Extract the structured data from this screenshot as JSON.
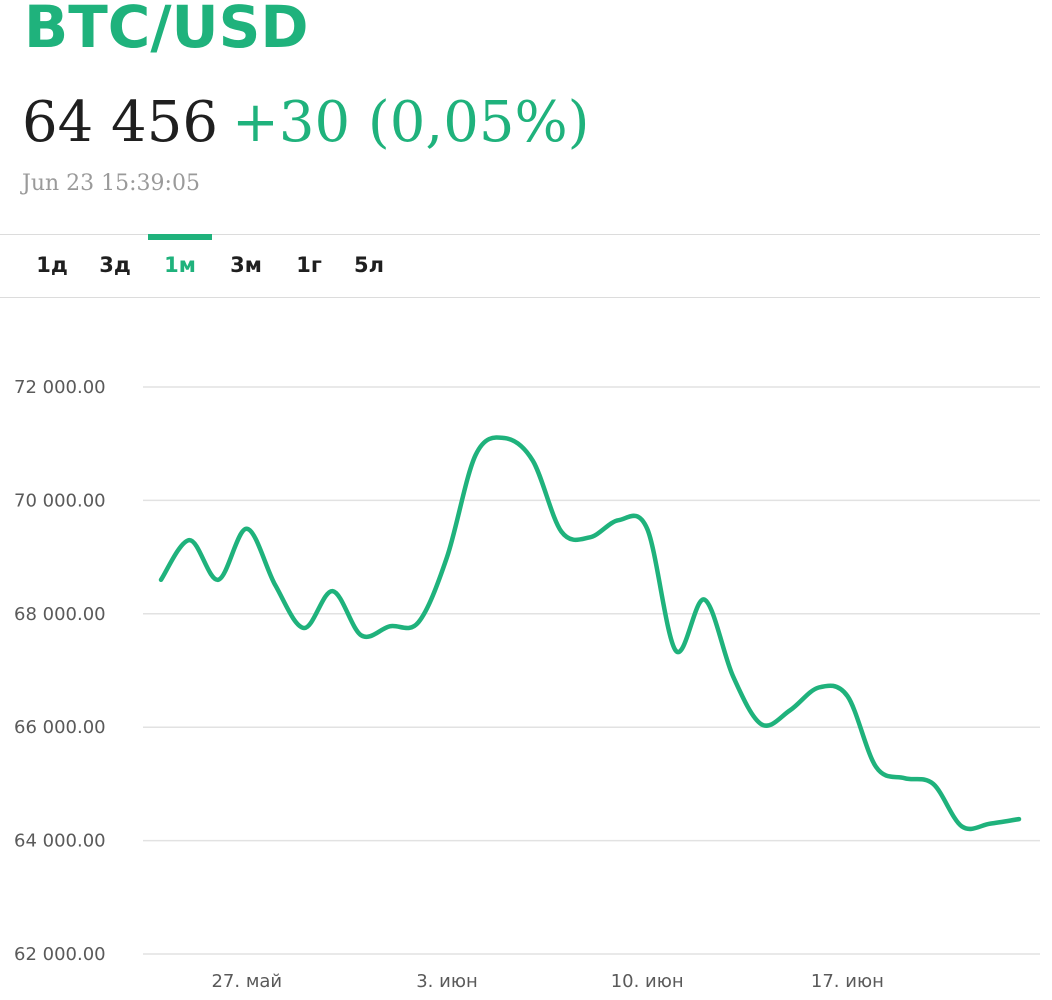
{
  "header": {
    "pair": "BTC/USD",
    "price": "64 456",
    "change": "+30 (0,05%)",
    "timestamp": "Jun 23 15:39:05"
  },
  "tabs": [
    {
      "label": "1д",
      "active": false
    },
    {
      "label": "3д",
      "active": false
    },
    {
      "label": "1м",
      "active": true
    },
    {
      "label": "3м",
      "active": false
    },
    {
      "label": "1г",
      "active": false
    },
    {
      "label": "5л",
      "active": false
    }
  ],
  "colors": {
    "accent": "#1fb27c",
    "text": "#1f1f1f",
    "muted": "#9a9a9a",
    "grid": "#e2e2e2"
  },
  "chart_data": {
    "type": "line",
    "title": "",
    "xlabel": "",
    "ylabel": "",
    "ylim": [
      62000,
      72000
    ],
    "grid": true,
    "y_ticks": [
      72000,
      70000,
      68000,
      66000,
      64000,
      62000
    ],
    "y_tick_labels": [
      "72 000.00",
      "70 000.00",
      "68 000.00",
      "66 000.00",
      "64 000.00",
      "62 000.00"
    ],
    "x_tick_labels": [
      "27. май",
      "3. июн",
      "10. июн",
      "17. июн"
    ],
    "x_tick_dates": [
      "2024-05-27",
      "2024-06-03",
      "2024-06-10",
      "2024-06-17"
    ],
    "series": [
      {
        "color": "#1fb27c",
        "x": [
          "2024-05-24",
          "2024-05-25",
          "2024-05-26",
          "2024-05-27",
          "2024-05-28",
          "2024-05-29",
          "2024-05-30",
          "2024-05-31",
          "2024-06-01",
          "2024-06-02",
          "2024-06-03",
          "2024-06-04",
          "2024-06-05",
          "2024-06-06",
          "2024-06-07",
          "2024-06-08",
          "2024-06-09",
          "2024-06-10",
          "2024-06-11",
          "2024-06-12",
          "2024-06-13",
          "2024-06-14",
          "2024-06-15",
          "2024-06-16",
          "2024-06-17",
          "2024-06-18",
          "2024-06-19",
          "2024-06-20",
          "2024-06-21",
          "2024-06-22",
          "2024-06-23"
        ],
        "values": [
          68600,
          69300,
          68600,
          69500,
          68500,
          67750,
          68400,
          67620,
          67780,
          67850,
          69000,
          70800,
          71100,
          70700,
          69450,
          69350,
          69650,
          69500,
          67350,
          68250,
          66900,
          66050,
          66300,
          66700,
          66550,
          65300,
          65100,
          65000,
          64250,
          64300,
          64380
        ]
      }
    ]
  }
}
